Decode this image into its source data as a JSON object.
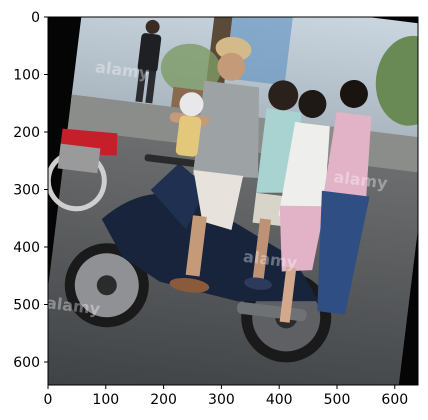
{
  "figure": {
    "x_ticks": [
      "0",
      "100",
      "200",
      "300",
      "400",
      "500",
      "600"
    ],
    "y_ticks": [
      "0",
      "100",
      "200",
      "300",
      "400",
      "500",
      "600"
    ],
    "x_range": [
      0,
      640
    ],
    "y_range": [
      640,
      0
    ],
    "watermark": "alamy",
    "colors": {
      "background_black": "#050505",
      "sky": "#b9c8d6",
      "road": "#54585c",
      "scooter_navy": "#17243c",
      "shirt_gray": "#9da3a5",
      "dress_pink": "#e2b2c6",
      "jeans_blue": "#2f4f84",
      "foliage_green": "#6a8a55",
      "red_scooter": "#c5202a"
    }
  }
}
